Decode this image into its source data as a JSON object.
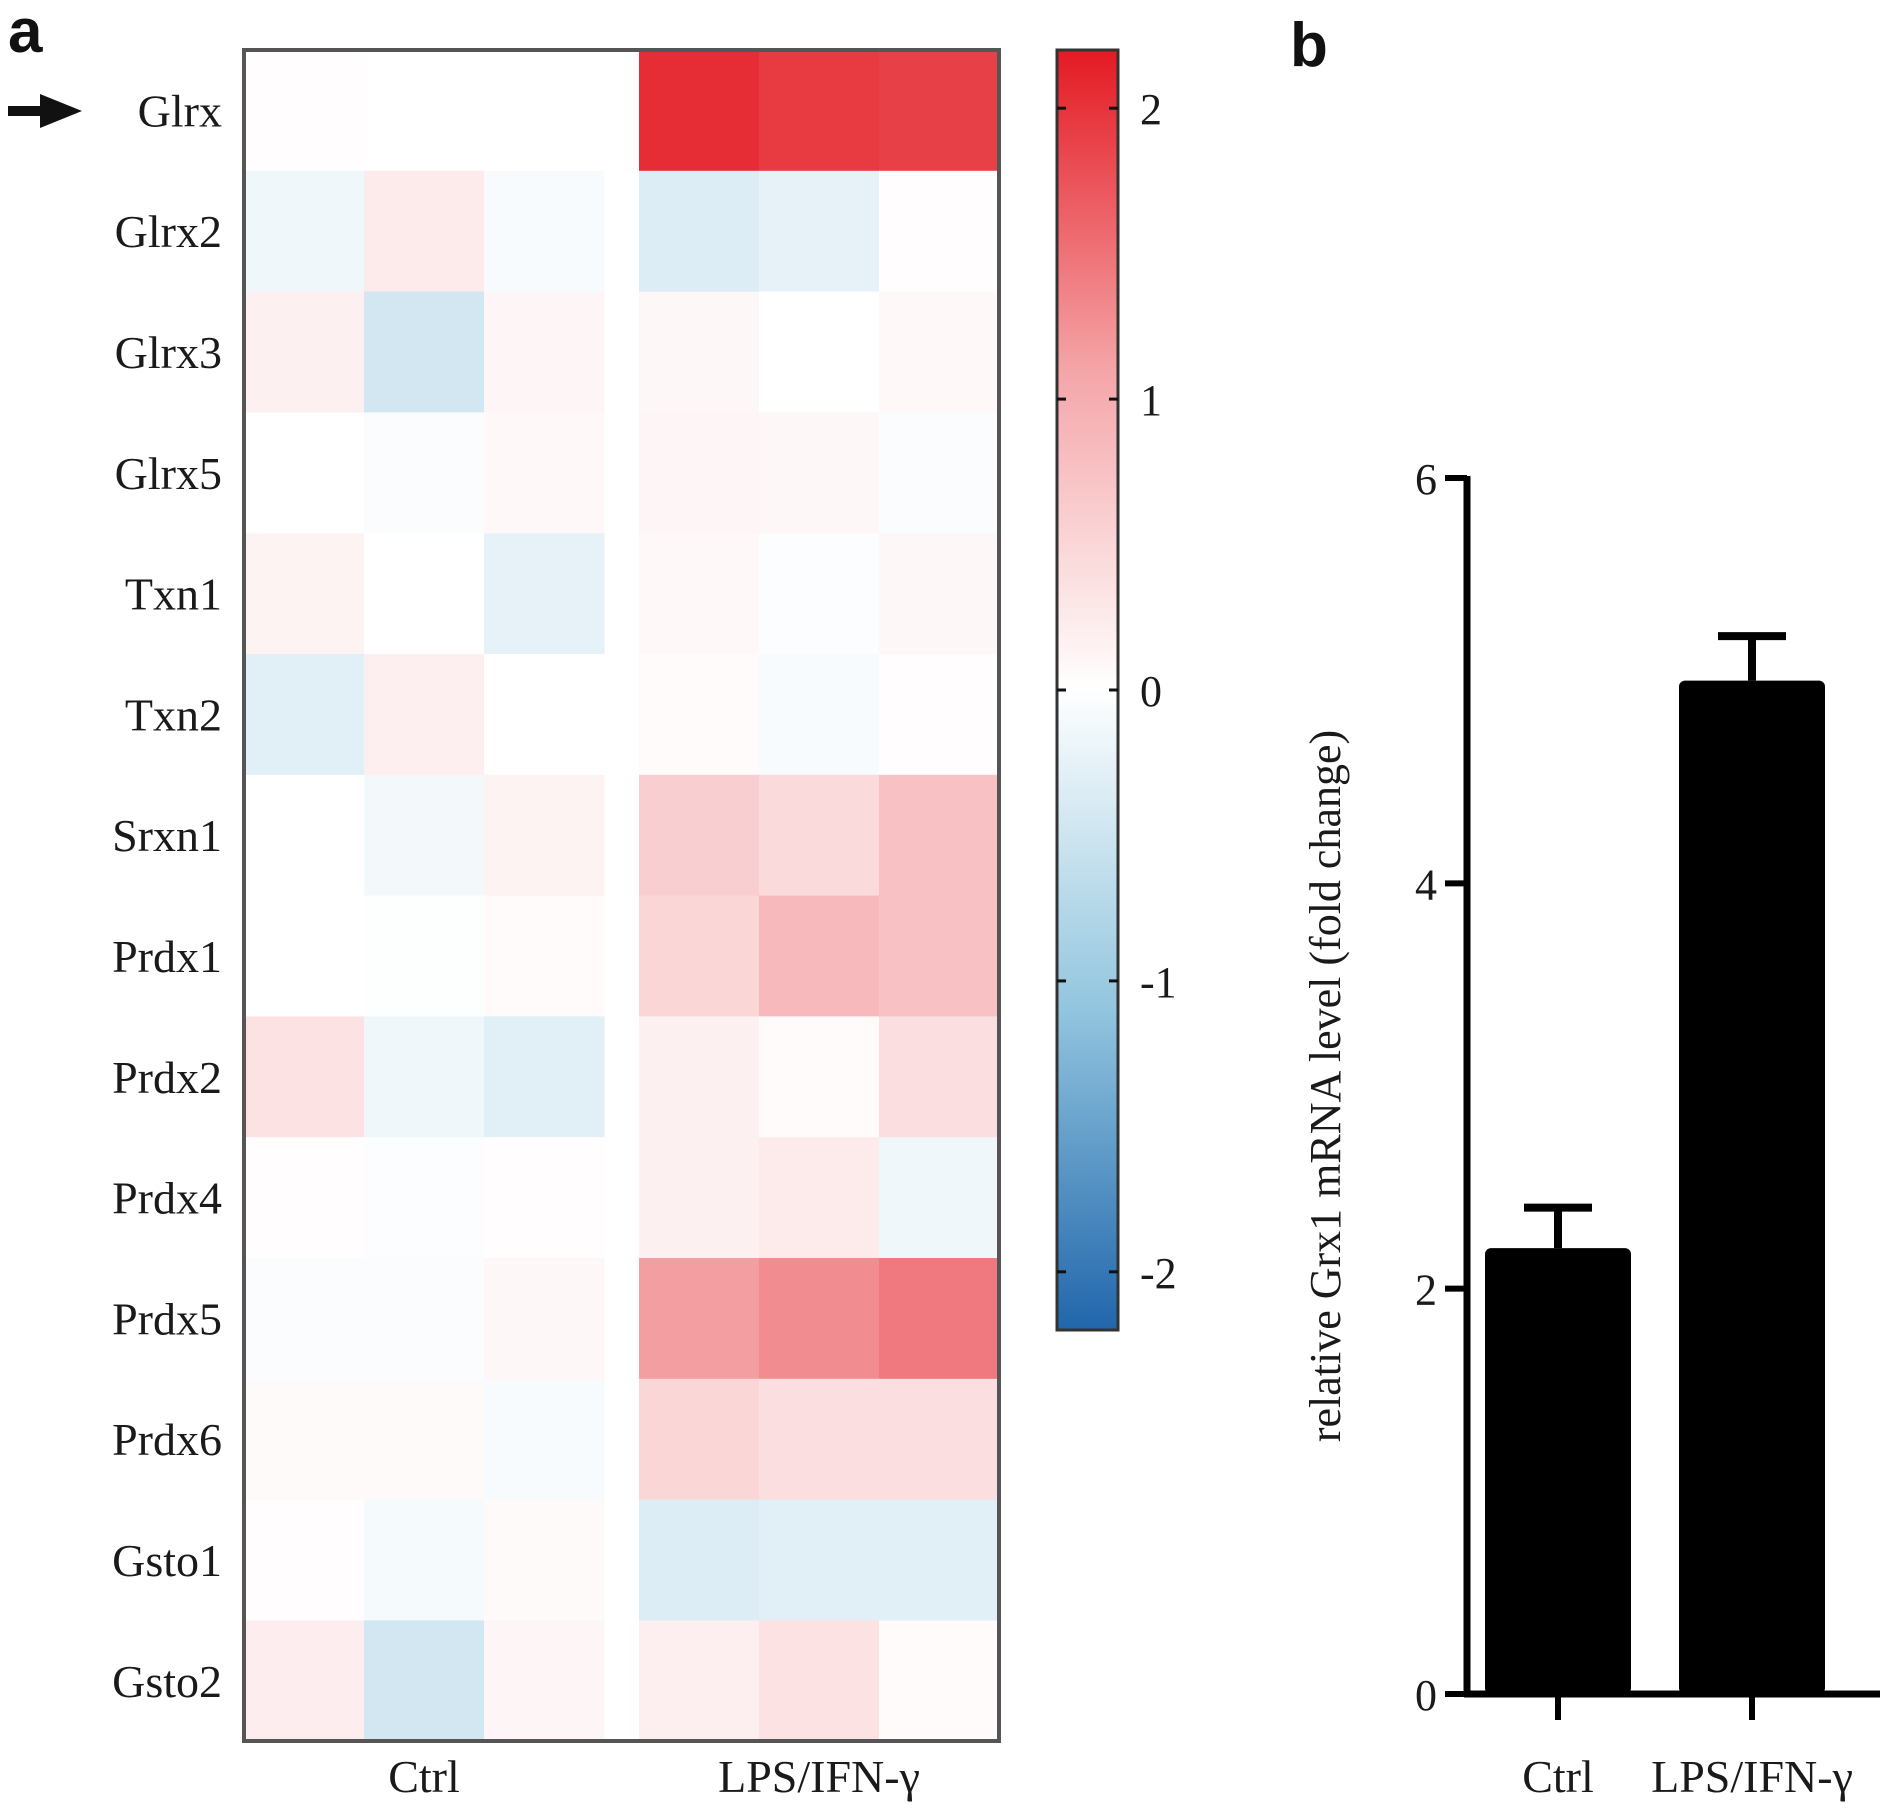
{
  "panels": {
    "a_label": "a",
    "b_label": "b"
  },
  "chart_data": [
    {
      "type": "heatmap",
      "panel": "a",
      "rows": [
        "Glrx",
        "Glrx2",
        "Glrx3",
        "Glrx5",
        "Txn1",
        "Txn2",
        "Srxn1",
        "Prdx1",
        "Prdx2",
        "Prdx4",
        "Prdx5",
        "Prdx6",
        "Gsto1",
        "Gsto2"
      ],
      "group_labels": [
        "Ctrl",
        "LPS/IFN-γ"
      ],
      "columns_per_group": 3,
      "highlighted_row": "Glrx",
      "values": [
        [
          0.03,
          0.0,
          0.0,
          2.05,
          1.95,
          1.9
        ],
        [
          -0.15,
          0.25,
          -0.07,
          -0.35,
          -0.25,
          0.02
        ],
        [
          0.18,
          -0.45,
          0.12,
          0.1,
          0.0,
          0.08
        ],
        [
          0.0,
          -0.05,
          0.08,
          0.12,
          0.1,
          -0.05
        ],
        [
          0.15,
          0.0,
          -0.25,
          0.08,
          -0.04,
          0.1
        ],
        [
          -0.3,
          0.2,
          0.0,
          0.05,
          -0.08,
          0.02
        ],
        [
          0.0,
          -0.12,
          0.15,
          0.6,
          0.45,
          0.75
        ],
        [
          0.0,
          -0.02,
          0.05,
          0.5,
          0.85,
          0.75
        ],
        [
          0.35,
          -0.15,
          -0.3,
          0.18,
          0.05,
          0.4
        ],
        [
          0.03,
          -0.04,
          0.02,
          0.18,
          0.25,
          -0.15
        ],
        [
          -0.05,
          -0.05,
          0.1,
          1.15,
          1.3,
          1.45
        ],
        [
          0.06,
          0.06,
          -0.08,
          0.5,
          0.4,
          0.4
        ],
        [
          0.02,
          -0.1,
          0.06,
          -0.35,
          -0.3,
          -0.3
        ],
        [
          0.22,
          -0.45,
          0.12,
          0.2,
          0.35,
          0.05
        ]
      ],
      "colorbar": {
        "range": [
          -2.2,
          2.2
        ],
        "ticks": [
          2,
          1,
          0,
          -1,
          -2
        ],
        "tick_labels": [
          "2",
          "1",
          "0",
          "-1",
          "-2"
        ],
        "colors": {
          "neg_extreme": "#2166ac",
          "neg_mid": "#92c5de",
          "zero": "#ffffff",
          "pos_mid": "#f4a5a8",
          "pos_extreme": "#e41a23"
        }
      }
    },
    {
      "type": "bar",
      "panel": "b",
      "categories": [
        "Ctrl",
        "LPS/IFN-γ"
      ],
      "values": [
        2.2,
        5.0
      ],
      "errors": [
        0.2,
        0.22
      ],
      "ylabel": "relative Grx1 mRNA level (fold change)",
      "ylim": [
        0,
        6
      ],
      "yticks": [
        0,
        2,
        4,
        6
      ],
      "ytick_labels": [
        "0",
        "2",
        "4",
        "6"
      ],
      "bar_color": "#000000"
    }
  ]
}
